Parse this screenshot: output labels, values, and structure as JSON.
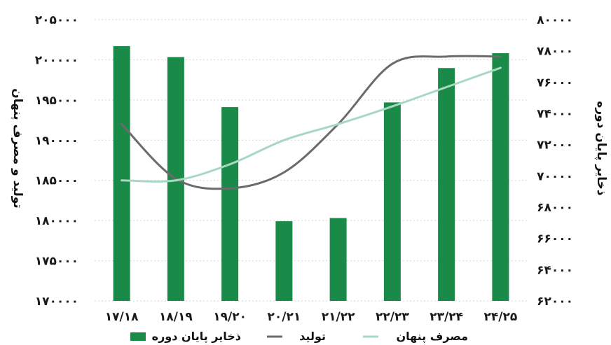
{
  "chart_data": {
    "type": "bar",
    "categories": [
      "17/18",
      "18/19",
      "19/20",
      "20/21",
      "21/22",
      "22/23",
      "23/24",
      "24/25"
    ],
    "category_labels": [
      "۱۷/۱۸",
      "۱۸/۱۹",
      "۱۹/۲۰",
      "۲۰/۲۱",
      "۲۱/۲۲",
      "۲۲/۲۳",
      "۲۳/۲۴",
      "۲۴/۲۵"
    ],
    "left_axis": {
      "label": "تولید و مصرف پنهان",
      "ylim": [
        170000,
        205000
      ],
      "ticks": [
        170000,
        175000,
        180000,
        185000,
        190000,
        195000,
        200000,
        205000
      ],
      "tick_labels": [
        "۱۷۰۰۰۰",
        "۱۷۵۰۰۰",
        "۱۸۰۰۰۰",
        "۱۸۵۰۰۰",
        "۱۹۰۰۰۰",
        "۱۹۵۰۰۰",
        "۲۰۰۰۰۰",
        "۲۰۵۰۰۰"
      ]
    },
    "right_axis": {
      "label": "ذخایر پایان دوره",
      "ylim": [
        62000,
        80000
      ],
      "ticks": [
        62000,
        64000,
        66000,
        68000,
        70000,
        72000,
        74000,
        76000,
        78000,
        80000
      ],
      "tick_labels": [
        "۶۲۰۰۰",
        "۶۴۰۰۰",
        "۶۶۰۰۰",
        "۶۸۰۰۰",
        "۷۰۰۰۰",
        "۷۲۰۰۰",
        "۷۴۰۰۰",
        "۷۶۰۰۰",
        "۷۸۰۰۰",
        "۸۰۰۰۰"
      ]
    },
    "series": [
      {
        "name": "ذخایر پایان دوره",
        "kind": "bar",
        "axis": "right",
        "color": "#1a8a48",
        "values": [
          78300,
          77600,
          74400,
          67100,
          67300,
          74700,
          76900,
          77850
        ]
      },
      {
        "name": "تولید",
        "kind": "line",
        "axis": "left",
        "color": "#6b6b6b",
        "values": [
          192000,
          185200,
          184000,
          186000,
          192000,
          199500,
          200400,
          200400
        ]
      },
      {
        "name": "مصرف پنهان",
        "kind": "line",
        "axis": "left",
        "color": "#a9d8c2",
        "values": [
          185000,
          185000,
          187000,
          190000,
          192000,
          194200,
          196600,
          199000
        ]
      }
    ],
    "grid": true,
    "legend_position": "bottom"
  }
}
